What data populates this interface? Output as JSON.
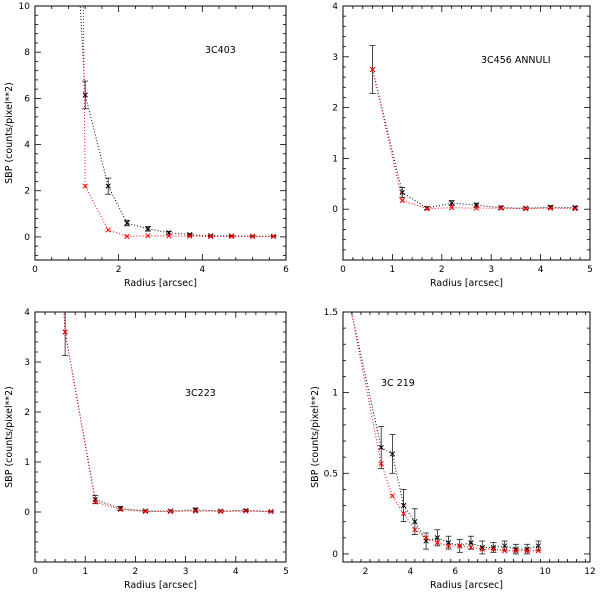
{
  "chart_data": [
    {
      "type": "line",
      "annotation": "3C403",
      "xlabel": "Radius [arcsec]",
      "ylabel": "SBP (counts/pixel**2)",
      "xlim": [
        0,
        6
      ],
      "ylim": [
        -1,
        10
      ],
      "xticks": [
        0,
        2,
        4,
        6
      ],
      "yticks": [
        0,
        2,
        4,
        6,
        8,
        10
      ],
      "series": [
        {
          "color": "#000000",
          "x": [
            1.2,
            1.75,
            2.2,
            2.7,
            3.2,
            3.7,
            4.2,
            4.7,
            5.2,
            5.7
          ],
          "y": [
            6.15,
            2.2,
            0.6,
            0.35,
            0.18,
            0.1,
            0.05,
            0.04,
            0.03,
            0.03
          ],
          "err": [
            0.6,
            0.35,
            0.12,
            0.1,
            0.06,
            0.04,
            0.03,
            0.03,
            0.02,
            0.02
          ],
          "lead": [
            [
              1.05,
              11
            ],
            [
              1.2,
              6.15
            ]
          ]
        },
        {
          "color": "#ff0000",
          "x": [
            1.2,
            1.75,
            2.2,
            2.7,
            3.2,
            3.7,
            4.2,
            4.7,
            5.2,
            5.7
          ],
          "y": [
            2.2,
            0.3,
            0.02,
            0.05,
            0.04,
            0.03,
            0.02,
            0.02,
            0.02,
            0.02
          ],
          "err": [
            0,
            0,
            0,
            0,
            0,
            0,
            0,
            0,
            0,
            0
          ],
          "lead": [
            [
              1.15,
              11
            ],
            [
              1.2,
              2.2
            ]
          ]
        }
      ]
    },
    {
      "type": "line",
      "annotation": "3C456  ANNULI",
      "xlabel": "Radius [arcsec]",
      "ylabel": "",
      "xlim": [
        0,
        5
      ],
      "ylim": [
        -1,
        4
      ],
      "xticks": [
        0,
        1,
        2,
        3,
        4,
        5
      ],
      "yticks": [
        0,
        1,
        2,
        3,
        4
      ],
      "series": [
        {
          "color": "#000000",
          "x": [
            0.6,
            1.2,
            1.7,
            2.2,
            2.7,
            3.2,
            3.7,
            4.2,
            4.7
          ],
          "y": [
            2.75,
            0.33,
            0.02,
            0.12,
            0.08,
            0.03,
            0.02,
            0.04,
            0.03
          ],
          "err": [
            0.47,
            0.1,
            0.03,
            0.05,
            0.04,
            0.03,
            0.02,
            0.03,
            0.03
          ],
          "lead": []
        },
        {
          "color": "#ff0000",
          "x": [
            0.6,
            1.2,
            1.7,
            2.2,
            2.7,
            3.2,
            3.7,
            4.2,
            4.7
          ],
          "y": [
            2.75,
            0.17,
            0.01,
            0.03,
            0.02,
            0.02,
            0.01,
            0.02,
            0.01
          ],
          "err": [
            0,
            0,
            0,
            0,
            0,
            0,
            0,
            0,
            0
          ],
          "lead": []
        }
      ]
    },
    {
      "type": "line",
      "annotation": "3C223",
      "xlabel": "Radius [arcsec]",
      "ylabel": "SBP (counts/pixel**2)",
      "xlim": [
        0,
        5
      ],
      "ylim": [
        -1,
        4
      ],
      "xticks": [
        0,
        1,
        2,
        3,
        4,
        5
      ],
      "yticks": [
        0,
        1,
        2,
        3,
        4
      ],
      "series": [
        {
          "color": "#000000",
          "x": [
            0.6,
            1.2,
            1.7,
            2.2,
            2.7,
            3.2,
            3.7,
            4.2,
            4.7
          ],
          "y": [
            3.6,
            0.25,
            0.07,
            0.02,
            0.02,
            0.04,
            0.02,
            0.03,
            0.01
          ],
          "err": [
            0.47,
            0.08,
            0.04,
            0.02,
            0.02,
            0.04,
            0.02,
            0.02,
            0.01
          ],
          "lead": [
            [
              0.55,
              4.5
            ],
            [
              0.6,
              3.6
            ]
          ]
        },
        {
          "color": "#ff0000",
          "x": [
            0.6,
            1.2,
            1.7,
            2.2,
            2.7,
            3.2,
            3.7,
            4.2,
            4.7
          ],
          "y": [
            3.6,
            0.2,
            0.05,
            0.01,
            0.01,
            0.02,
            0.01,
            0.02,
            0.01
          ],
          "err": [
            0,
            0,
            0,
            0,
            0,
            0,
            0,
            0,
            0
          ],
          "lead": [
            [
              0.55,
              4.5
            ],
            [
              0.6,
              3.6
            ]
          ]
        }
      ]
    },
    {
      "type": "line",
      "annotation": "3C 219",
      "xlabel": "Radius [arcsec]",
      "ylabel": "SBP (counts/pixel**2)",
      "xlim": [
        1,
        12
      ],
      "ylim": [
        -0.05,
        1.5
      ],
      "xticks": [
        2,
        4,
        6,
        8,
        10,
        12
      ],
      "yticks": [
        0,
        0.5,
        1,
        1.5
      ],
      "series": [
        {
          "color": "#000000",
          "x": [
            2.7,
            3.2,
            3.7,
            4.2,
            4.7,
            5.2,
            5.7,
            6.2,
            6.7,
            7.2,
            7.7,
            8.2,
            8.7,
            9.2,
            9.7
          ],
          "y": [
            0.66,
            0.62,
            0.3,
            0.2,
            0.08,
            0.1,
            0.07,
            0.05,
            0.07,
            0.04,
            0.04,
            0.05,
            0.03,
            0.03,
            0.05
          ],
          "err": [
            0.13,
            0.12,
            0.1,
            0.08,
            0.05,
            0.05,
            0.04,
            0.04,
            0.04,
            0.04,
            0.03,
            0.03,
            0.03,
            0.03,
            0.03
          ],
          "lead": [
            [
              1.3,
              1.55
            ],
            [
              2.7,
              0.66
            ]
          ]
        },
        {
          "color": "#ff0000",
          "x": [
            2.7,
            3.2,
            3.7,
            4.2,
            4.7,
            5.2,
            5.7,
            6.2,
            6.7,
            7.2,
            7.7,
            8.2,
            8.7,
            9.2,
            9.7
          ],
          "y": [
            0.56,
            0.36,
            0.25,
            0.15,
            0.1,
            0.07,
            0.05,
            0.05,
            0.04,
            0.03,
            0.03,
            0.02,
            0.02,
            0.02,
            0.02
          ],
          "err": [
            0,
            0,
            0,
            0,
            0,
            0,
            0,
            0,
            0,
            0,
            0,
            0,
            0,
            0,
            0
          ],
          "lead": [
            [
              1.3,
              1.55
            ],
            [
              2.7,
              0.56
            ]
          ]
        }
      ]
    }
  ]
}
